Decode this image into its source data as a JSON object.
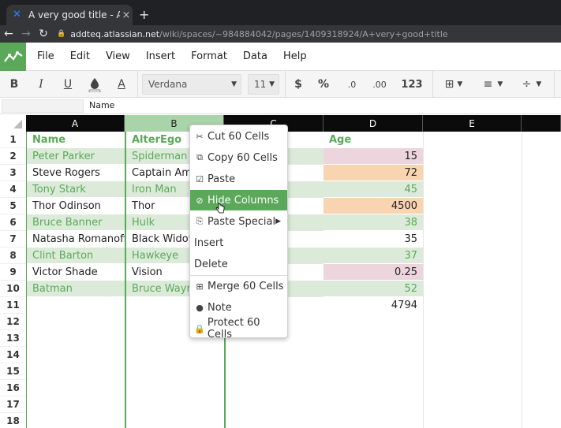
{
  "browser": {
    "tab_title": "A very good title - Adisa C",
    "tab_close": "×",
    "new_tab": "+",
    "url_host": "addteq.atlassian.net",
    "url_path": "/wiki/spaces/~984884042/pages/1409318924/A+very+good+title",
    "back": "←",
    "forward": "→",
    "reload": "↻"
  },
  "menu": [
    "File",
    "Edit",
    "View",
    "Insert",
    "Format",
    "Data",
    "Help"
  ],
  "toolbar": {
    "bold": "B",
    "italic": "I",
    "underline": "U",
    "font": "Verdana",
    "font_size": "11",
    "currency": "$",
    "percent": "%",
    "dec_less": ".0",
    "dec_more": ".00",
    "number_format": "123"
  },
  "formula_bar": {
    "name_box": "",
    "value": "Name"
  },
  "columns": [
    "A",
    "B",
    "C",
    "D",
    "E"
  ],
  "rows": [
    "1",
    "2",
    "3",
    "4",
    "5",
    "6",
    "7",
    "8",
    "9",
    "10",
    "11",
    "12",
    "13",
    "14",
    "15",
    "16",
    "17",
    "18"
  ],
  "sheet": {
    "col_a": [
      "Name",
      "Peter Parker",
      "Steve Rogers",
      "Tony Stark",
      "Thor Odinson",
      "Bruce Banner",
      "Natasha Romanoff",
      "Clint Barton",
      "Victor Shade",
      "Batman"
    ],
    "col_b": [
      "AlterEgo",
      "Spiderman",
      "Captain Ame",
      "Iron Man",
      "Thor",
      "Hulk",
      "Black Widow",
      "Hawkeye",
      "Vision",
      "Bruce Wayn"
    ],
    "col_d": [
      "Age",
      "15",
      "72",
      "45",
      "4500",
      "38",
      "35",
      "37",
      "0.25",
      "52",
      "4794"
    ]
  },
  "context_menu": {
    "items": [
      {
        "label": "Cut 60 Cells",
        "icon": "scissors-icon"
      },
      {
        "label": "Copy 60 Cells",
        "icon": "copy-icon"
      },
      {
        "label": "Paste",
        "icon": "clipboard-icon"
      },
      {
        "label": "Hide Columns",
        "icon": "eye-off-icon"
      },
      {
        "label": "Paste Special",
        "icon": "paste-special-icon"
      },
      {
        "label": "Insert",
        "icon": ""
      },
      {
        "label": "Delete",
        "icon": ""
      },
      {
        "label": "Merge 60 Cells",
        "icon": "merge-icon"
      },
      {
        "label": "Note",
        "icon": "comment-icon"
      },
      {
        "label": "Protect 60 Cells",
        "icon": "lock-icon"
      }
    ]
  },
  "colors": {
    "accent": "#5ba85a",
    "pink": "#ecd5dd",
    "orange": "#f9d4b1",
    "light_green": "#dcebd9"
  }
}
